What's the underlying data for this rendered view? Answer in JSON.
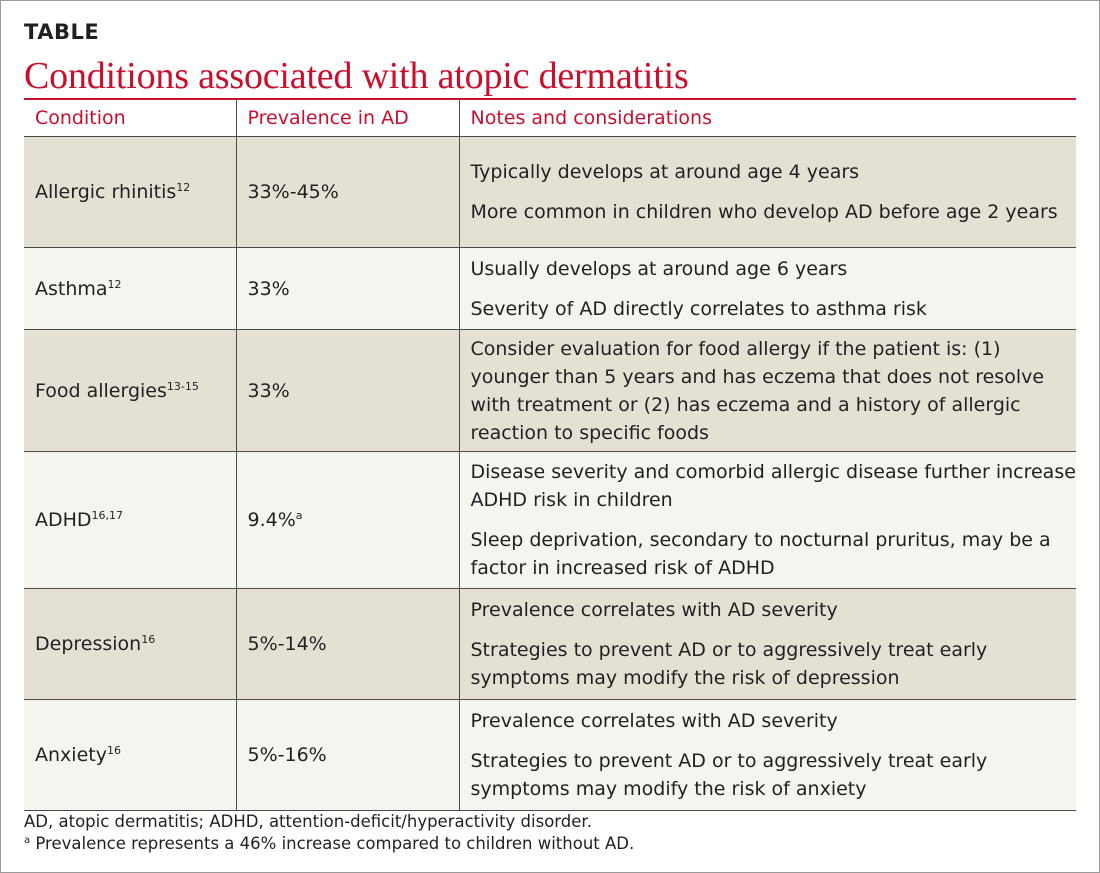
{
  "header": {
    "label": "TABLE",
    "title": "Conditions associated with atopic dermatitis"
  },
  "table": {
    "columns": [
      "Condition",
      "Prevalence in AD",
      "Notes and considerations"
    ],
    "rows": [
      {
        "condition": "Allergic rhinitis",
        "ref": "12",
        "prevalence": "33%-45%",
        "prevalence_sup": "",
        "notes": [
          "Typically develops at around age 4 years",
          "More common in children who develop AD before age 2 years"
        ]
      },
      {
        "condition": "Asthma",
        "ref": "12",
        "prevalence": "33%",
        "prevalence_sup": "",
        "notes": [
          "Usually develops at around age 6 years",
          "Severity of AD directly correlates to asthma risk"
        ]
      },
      {
        "condition": "Food allergies",
        "ref": "13-15",
        "prevalence": "33%",
        "prevalence_sup": "",
        "notes": [
          "Consider evaluation for food allergy if the patient is: (1) younger than 5 years and has eczema that does not resolve with treatment or (2) has eczema and a history of allergic reaction to specific foods"
        ]
      },
      {
        "condition": "ADHD",
        "ref": "16,17",
        "prevalence": "9.4%",
        "prevalence_sup": "a",
        "notes": [
          "Disease severity and comorbid allergic disease further increase ADHD risk in children",
          "Sleep deprivation, secondary to nocturnal pruritus, may be a factor in increased risk of ADHD"
        ]
      },
      {
        "condition": "Depression",
        "ref": "16",
        "prevalence": "5%-14%",
        "prevalence_sup": "",
        "notes": [
          "Prevalence correlates with AD severity",
          "Strategies to prevent AD or to aggressively treat early symptoms may modify the risk of depression"
        ]
      },
      {
        "condition": "Anxiety",
        "ref": "16",
        "prevalence": "5%-16%",
        "prevalence_sup": "",
        "notes": [
          "Prevalence correlates with AD severity",
          "Strategies to prevent AD or to aggressively treat early symptoms may modify the risk of anxiety"
        ]
      }
    ]
  },
  "footer": {
    "abbreviations": "AD, atopic dermatitis; ADHD, attention-deficit/hyperactivity disorder.",
    "footnote_mark": "a",
    "footnote": " Prevalence represents a 46% increase compared to children without AD."
  },
  "colors": {
    "accent_red": "#c8102e",
    "row_shade": "#e4e1d4",
    "row_plain": "#f5f4ee",
    "rule": "#4a4a4a"
  }
}
